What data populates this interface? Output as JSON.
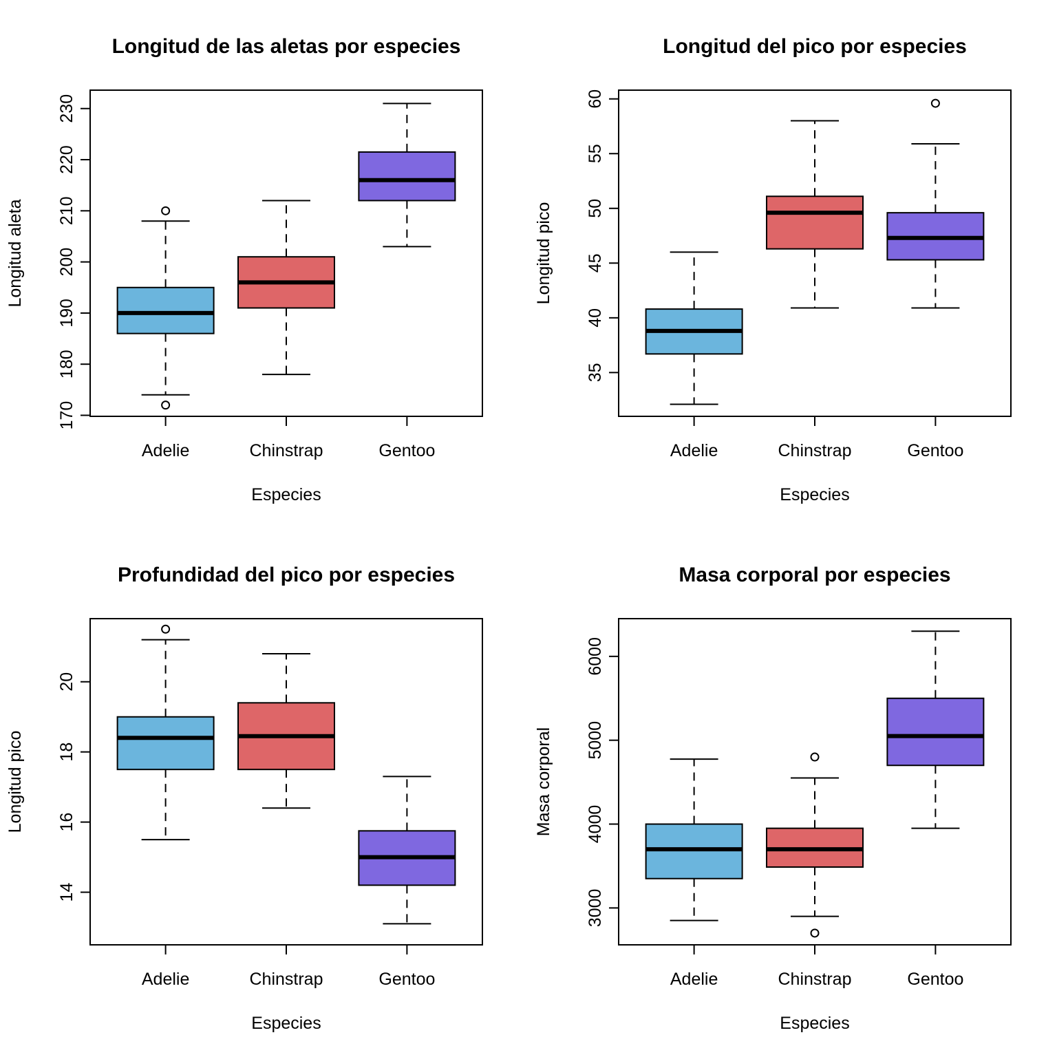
{
  "chart_data": [
    {
      "type": "boxplot",
      "title": "Longitud de las aletas por especies",
      "xlabel": "Especies",
      "ylabel": "Longitud aleta",
      "ylim": [
        169.8,
        233.6
      ],
      "yticks": [
        "170",
        "180",
        "190",
        "200",
        "210",
        "220",
        "230"
      ],
      "categories": [
        "Adelie",
        "Chinstrap",
        "Gentoo"
      ],
      "colors": [
        "#6BB5DD",
        "#DE6668",
        "#7F68E0"
      ],
      "boxes": [
        {
          "whisker_low": 174,
          "q1": 186,
          "median": 190,
          "q3": 195,
          "whisker_high": 208,
          "outliers": [
            172,
            210
          ]
        },
        {
          "whisker_low": 178,
          "q1": 191,
          "median": 196,
          "q3": 201,
          "whisker_high": 212,
          "outliers": []
        },
        {
          "whisker_low": 203,
          "q1": 212,
          "median": 216,
          "q3": 221.5,
          "whisker_high": 231,
          "outliers": []
        }
      ]
    },
    {
      "type": "boxplot",
      "title": "Longitud del pico por especies",
      "xlabel": "Especies",
      "ylabel": "Longitud pico",
      "ylim": [
        31.0,
        60.8
      ],
      "yticks": [
        "35",
        "40",
        "45",
        "50",
        "55",
        "60"
      ],
      "categories": [
        "Adelie",
        "Chinstrap",
        "Gentoo"
      ],
      "colors": [
        "#6BB5DD",
        "#DE6668",
        "#7F68E0"
      ],
      "boxes": [
        {
          "whisker_low": 32.1,
          "q1": 36.7,
          "median": 38.8,
          "q3": 40.8,
          "whisker_high": 46.0,
          "outliers": []
        },
        {
          "whisker_low": 40.9,
          "q1": 46.3,
          "median": 49.6,
          "q3": 51.1,
          "whisker_high": 58.0,
          "outliers": []
        },
        {
          "whisker_low": 40.9,
          "q1": 45.3,
          "median": 47.3,
          "q3": 49.6,
          "whisker_high": 55.9,
          "outliers": [
            59.6
          ]
        }
      ]
    },
    {
      "type": "boxplot",
      "title": "Profundidad del pico por especies",
      "xlabel": "Especies",
      "ylabel": "Longitud pico",
      "ylim": [
        12.5,
        21.8
      ],
      "yticks": [
        "14",
        "16",
        "18",
        "20"
      ],
      "categories": [
        "Adelie",
        "Chinstrap",
        "Gentoo"
      ],
      "colors": [
        "#6BB5DD",
        "#DE6668",
        "#7F68E0"
      ],
      "boxes": [
        {
          "whisker_low": 15.5,
          "q1": 17.5,
          "median": 18.4,
          "q3": 19.0,
          "whisker_high": 21.2,
          "outliers": [
            21.5
          ]
        },
        {
          "whisker_low": 16.4,
          "q1": 17.5,
          "median": 18.45,
          "q3": 19.4,
          "whisker_high": 20.8,
          "outliers": []
        },
        {
          "whisker_low": 13.1,
          "q1": 14.2,
          "median": 15.0,
          "q3": 15.75,
          "whisker_high": 17.3,
          "outliers": []
        }
      ]
    },
    {
      "type": "boxplot",
      "title": "Masa corporal por especies",
      "xlabel": "Especies",
      "ylabel": "Masa corporal",
      "ylim": [
        2560,
        6450
      ],
      "yticks": [
        "3000",
        "4000",
        "5000",
        "6000"
      ],
      "categories": [
        "Adelie",
        "Chinstrap",
        "Gentoo"
      ],
      "colors": [
        "#6BB5DD",
        "#DE6668",
        "#7F68E0"
      ],
      "boxes": [
        {
          "whisker_low": 2850,
          "q1": 3350,
          "median": 3700,
          "q3": 4000,
          "whisker_high": 4775,
          "outliers": []
        },
        {
          "whisker_low": 2900,
          "q1": 3487.5,
          "median": 3700,
          "q3": 3950,
          "whisker_high": 4550,
          "outliers": [
            2700,
            4800
          ]
        },
        {
          "whisker_low": 3950,
          "q1": 4700,
          "median": 5050,
          "q3": 5500,
          "whisker_high": 6300,
          "outliers": []
        }
      ]
    }
  ]
}
